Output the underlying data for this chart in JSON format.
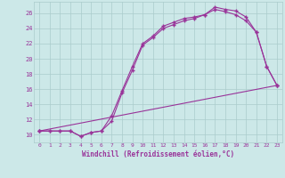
{
  "background_color": "#cce8e8",
  "grid_color": "#aacccc",
  "line_color": "#993399",
  "marker": "+",
  "xlabel": "Windchill (Refroidissement éolien,°C)",
  "xlim": [
    -0.5,
    23.5
  ],
  "ylim": [
    9.0,
    27.5
  ],
  "yticks": [
    10,
    12,
    14,
    16,
    18,
    20,
    22,
    24,
    26
  ],
  "xticks": [
    0,
    1,
    2,
    3,
    4,
    5,
    6,
    7,
    8,
    9,
    10,
    11,
    12,
    13,
    14,
    15,
    16,
    17,
    18,
    19,
    20,
    21,
    22,
    23
  ],
  "line1_x": [
    0,
    1,
    2,
    3,
    4,
    5,
    6,
    7,
    8,
    9,
    10,
    11,
    12,
    13,
    14,
    15,
    16,
    17,
    18,
    19,
    20,
    21,
    22,
    23
  ],
  "line1_y": [
    10.5,
    10.5,
    10.5,
    10.5,
    9.8,
    10.3,
    10.5,
    12.5,
    15.8,
    19.0,
    22.0,
    23.0,
    24.3,
    24.8,
    25.3,
    25.5,
    25.8,
    26.5,
    26.2,
    25.8,
    25.0,
    23.5,
    19.0,
    16.5
  ],
  "line2_x": [
    0,
    1,
    2,
    3,
    4,
    5,
    6,
    7,
    8,
    9,
    10,
    11,
    12,
    13,
    14,
    15,
    16,
    17,
    18,
    19,
    20,
    21,
    22,
    23
  ],
  "line2_y": [
    10.5,
    10.5,
    10.5,
    10.5,
    9.8,
    10.3,
    10.5,
    11.8,
    15.5,
    18.5,
    21.8,
    22.8,
    24.0,
    24.5,
    25.0,
    25.3,
    25.8,
    26.8,
    26.5,
    26.3,
    25.5,
    23.5,
    19.0,
    16.5
  ],
  "line3_x": [
    0,
    23
  ],
  "line3_y": [
    10.5,
    16.5
  ]
}
